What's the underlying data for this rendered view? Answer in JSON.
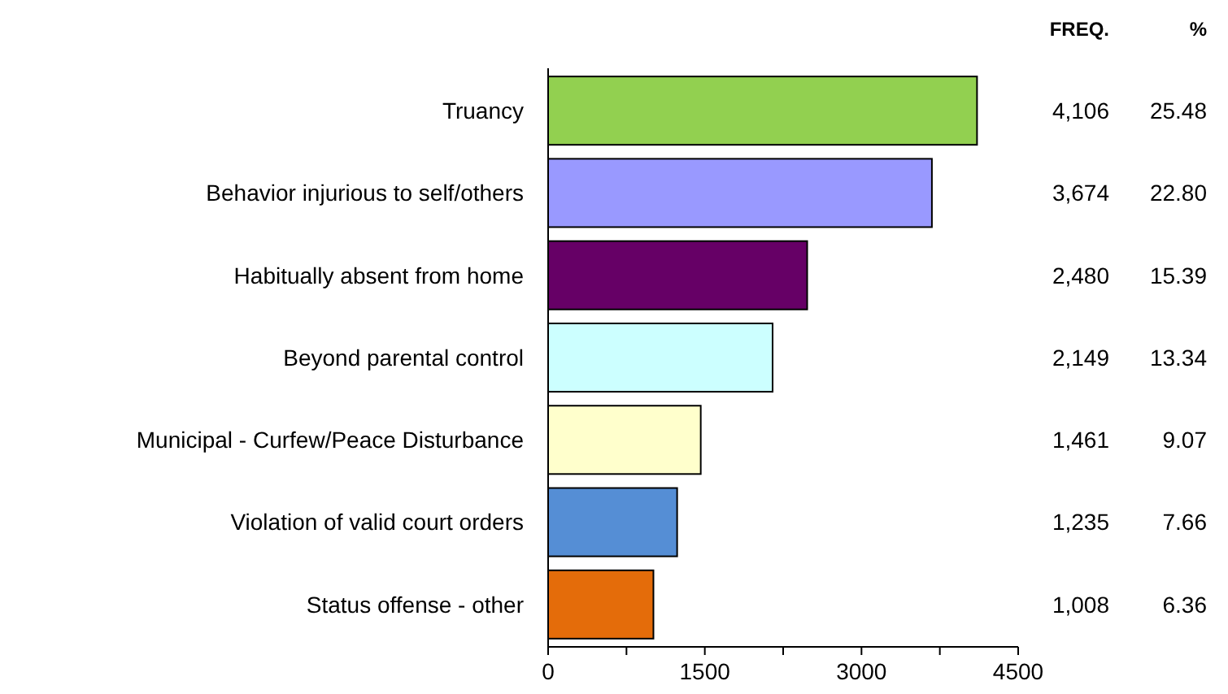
{
  "chart_data": {
    "type": "bar",
    "orientation": "horizontal",
    "categories": [
      "Truancy",
      "Behavior injurious to self/others",
      "Habitually absent from home",
      "Beyond parental control",
      "Municipal - Curfew/Peace Disturbance",
      "Violation of valid court orders ",
      "Status offense - other"
    ],
    "values": [
      4106,
      3674,
      2480,
      2149,
      1461,
      1235,
      1008
    ],
    "colors": [
      "#92d050",
      "#9999ff",
      "#660066",
      "#ccffff",
      "#ffffcc",
      "#558ed5",
      "#e46c0a"
    ],
    "value_labels": [
      "4,106",
      "3,674",
      "2,480",
      "2,149",
      "1,461",
      "1,235",
      "1,008"
    ],
    "xlim": [
      0,
      4500
    ],
    "xticks": [
      0,
      {
        "value": 750,
        "label": null
      },
      1500,
      {
        "value": 2250,
        "label": null
      },
      3000,
      {
        "value": 3750,
        "label": null
      },
      4500
    ],
    "annotations": [
      "FREQ.",
      "%",
      "25.48",
      "22.80",
      "15.39",
      "13.34",
      "9.07",
      "7.66",
      "6.36"
    ],
    "grid": false
  }
}
